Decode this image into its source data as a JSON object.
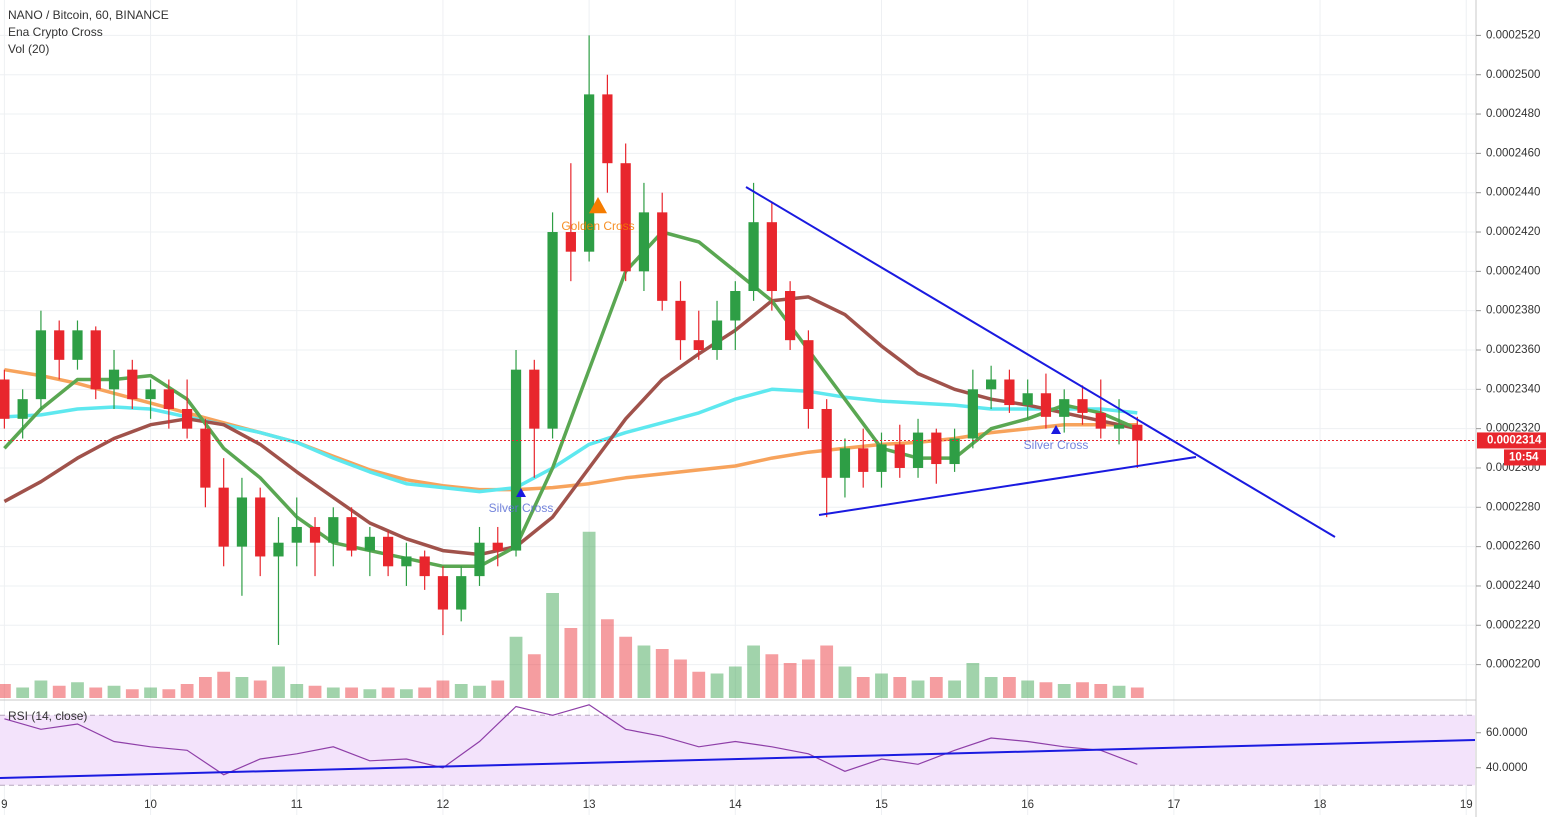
{
  "chart_data": [
    {
      "type": "candlestick",
      "title": "NANO / Bitcoin, 60, BINANCE",
      "indicators": [
        "Ena Crypto Cross",
        "Vol (20)"
      ],
      "x": [
        9.0,
        9.125,
        9.25,
        9.375,
        9.5,
        9.625,
        9.75,
        9.875,
        10.0,
        10.125,
        10.25,
        10.375,
        10.5,
        10.625,
        10.75,
        10.875,
        11.0,
        11.125,
        11.25,
        11.375,
        11.5,
        11.625,
        11.75,
        11.875,
        12.0,
        12.125,
        12.25,
        12.375,
        12.5,
        12.625,
        12.75,
        12.875,
        13.0,
        13.125,
        13.25,
        13.375,
        13.5,
        13.625,
        13.75,
        13.875,
        14.0,
        14.125,
        14.25,
        14.375,
        14.5,
        14.625,
        14.75,
        14.875,
        15.0,
        15.125,
        15.25,
        15.375,
        15.5,
        15.625,
        15.75,
        15.875,
        16.0,
        16.125,
        16.25,
        16.375,
        16.5,
        16.625,
        16.75
      ],
      "open": [
        0.0002345,
        0.0002325,
        0.0002335,
        0.000237,
        0.0002355,
        0.000237,
        0.000234,
        0.000235,
        0.0002335,
        0.000234,
        0.000233,
        0.000232,
        0.000229,
        0.000226,
        0.0002285,
        0.0002255,
        0.0002262,
        0.000227,
        0.0002262,
        0.0002275,
        0.0002258,
        0.0002265,
        0.000225,
        0.0002255,
        0.0002245,
        0.0002228,
        0.0002245,
        0.0002262,
        0.0002258,
        0.000235,
        0.000232,
        0.000242,
        0.000241,
        0.000249,
        0.0002455,
        0.00024,
        0.000243,
        0.0002385,
        0.0002365,
        0.000236,
        0.0002375,
        0.000239,
        0.0002425,
        0.000239,
        0.0002365,
        0.000233,
        0.0002295,
        0.000231,
        0.0002298,
        0.0002312,
        0.00023,
        0.0002318,
        0.0002302,
        0.0002315,
        0.000234,
        0.0002345,
        0.0002332,
        0.0002338,
        0.0002326,
        0.0002335,
        0.0002328,
        0.000232,
        0.0002322
      ],
      "high": [
        0.000235,
        0.000234,
        0.000238,
        0.0002375,
        0.0002375,
        0.0002372,
        0.000236,
        0.0002355,
        0.0002345,
        0.0002345,
        0.0002345,
        0.0002325,
        0.0002305,
        0.0002295,
        0.000229,
        0.0002275,
        0.0002285,
        0.0002275,
        0.000228,
        0.000228,
        0.000227,
        0.0002268,
        0.0002262,
        0.0002258,
        0.000225,
        0.000225,
        0.000227,
        0.000227,
        0.000236,
        0.0002355,
        0.000243,
        0.0002455,
        0.000252,
        0.00025,
        0.0002465,
        0.0002445,
        0.000244,
        0.0002395,
        0.000238,
        0.0002385,
        0.0002395,
        0.0002445,
        0.0002435,
        0.0002395,
        0.000237,
        0.0002335,
        0.0002315,
        0.000232,
        0.0002318,
        0.0002322,
        0.0002325,
        0.000232,
        0.000232,
        0.000235,
        0.0002352,
        0.000235,
        0.0002345,
        0.0002348,
        0.000234,
        0.0002342,
        0.0002345,
        0.0002335,
        0.0002326
      ],
      "low": [
        0.000232,
        0.0002315,
        0.000233,
        0.0002345,
        0.000235,
        0.0002335,
        0.000233,
        0.000233,
        0.0002325,
        0.000232,
        0.0002315,
        0.000228,
        0.000225,
        0.0002235,
        0.0002245,
        0.000221,
        0.000225,
        0.0002245,
        0.000225,
        0.0002255,
        0.0002245,
        0.0002245,
        0.000224,
        0.0002238,
        0.0002215,
        0.0002222,
        0.000224,
        0.000225,
        0.0002255,
        0.0002295,
        0.0002315,
        0.0002395,
        0.0002405,
        0.000244,
        0.0002395,
        0.000239,
        0.000238,
        0.0002355,
        0.0002355,
        0.0002355,
        0.000236,
        0.0002385,
        0.000238,
        0.000236,
        0.000232,
        0.0002275,
        0.0002285,
        0.000229,
        0.000229,
        0.0002295,
        0.0002295,
        0.0002292,
        0.0002298,
        0.000231,
        0.000233,
        0.0002328,
        0.0002325,
        0.000232,
        0.0002318,
        0.0002322,
        0.0002315,
        0.0002312,
        0.00023
      ],
      "close": [
        0.0002325,
        0.0002335,
        0.000237,
        0.0002355,
        0.000237,
        0.000234,
        0.000235,
        0.0002335,
        0.000234,
        0.000233,
        0.000232,
        0.000229,
        0.000226,
        0.0002285,
        0.0002255,
        0.0002262,
        0.000227,
        0.0002262,
        0.0002275,
        0.0002258,
        0.0002265,
        0.000225,
        0.0002255,
        0.0002245,
        0.0002228,
        0.0002245,
        0.0002262,
        0.0002258,
        0.000235,
        0.000232,
        0.000242,
        0.000241,
        0.000249,
        0.0002455,
        0.00024,
        0.000243,
        0.0002385,
        0.0002365,
        0.000236,
        0.0002375,
        0.000239,
        0.0002425,
        0.000239,
        0.0002365,
        0.000233,
        0.0002295,
        0.000231,
        0.0002298,
        0.0002312,
        0.00023,
        0.0002318,
        0.0002302,
        0.0002315,
        0.000234,
        0.0002345,
        0.0002332,
        0.0002338,
        0.0002326,
        0.0002335,
        0.0002328,
        0.000232,
        0.0002322,
        0.0002314
      ],
      "up_color": "#2e9e45",
      "down_color": "#e8262d",
      "volume": [
        8,
        6,
        10,
        7,
        9,
        6,
        7,
        5,
        6,
        5,
        8,
        12,
        15,
        12,
        10,
        18,
        8,
        7,
        6,
        6,
        5,
        6,
        5,
        6,
        10,
        8,
        7,
        10,
        35,
        25,
        60,
        40,
        95,
        45,
        35,
        30,
        28,
        22,
        15,
        14,
        18,
        30,
        25,
        20,
        22,
        30,
        18,
        12,
        14,
        12,
        10,
        12,
        10,
        20,
        12,
        12,
        10,
        9,
        8,
        9,
        8,
        7,
        6
      ],
      "lines": {
        "x": [
          9.0,
          9.25,
          9.5,
          9.75,
          10.0,
          10.25,
          10.5,
          10.75,
          11.0,
          11.25,
          11.5,
          11.75,
          12.0,
          12.25,
          12.5,
          12.75,
          13.0,
          13.25,
          13.5,
          13.75,
          14.0,
          14.25,
          14.5,
          14.75,
          15.0,
          15.25,
          15.5,
          15.75,
          16.0,
          16.25,
          16.5,
          16.75
        ],
        "series": [
          {
            "color": "#f7a35c",
            "values": [
              0.000235,
              0.0002347,
              0.0002343,
              0.0002338,
              0.0002333,
              0.0002328,
              0.0002323,
              0.0002318,
              0.0002313,
              0.0002306,
              0.0002299,
              0.0002294,
              0.0002291,
              0.0002289,
              0.0002289,
              0.000229,
              0.0002292,
              0.0002295,
              0.0002297,
              0.0002299,
              0.0002301,
              0.0002305,
              0.0002308,
              0.000231,
              0.0002312,
              0.0002313,
              0.0002315,
              0.0002318,
              0.000232,
              0.0002322,
              0.0002322,
              0.0002322
            ]
          },
          {
            "color": "#5ee8ef",
            "values": [
              0.0002326,
              0.0002327,
              0.000233,
              0.0002331,
              0.000233,
              0.0002326,
              0.0002322,
              0.0002318,
              0.0002313,
              0.0002305,
              0.0002298,
              0.0002292,
              0.000229,
              0.0002288,
              0.000229,
              0.00023,
              0.0002312,
              0.0002318,
              0.0002323,
              0.0002328,
              0.0002335,
              0.000234,
              0.0002339,
              0.0002336,
              0.0002334,
              0.0002333,
              0.0002332,
              0.000233,
              0.000233,
              0.000233,
              0.000233,
              0.0002328
            ]
          },
          {
            "color": "#a0524b",
            "values": [
              0.0002283,
              0.0002293,
              0.0002305,
              0.0002315,
              0.0002322,
              0.0002325,
              0.0002322,
              0.0002312,
              0.0002298,
              0.0002285,
              0.0002272,
              0.0002264,
              0.0002258,
              0.0002256,
              0.000226,
              0.0002275,
              0.00023,
              0.0002325,
              0.0002345,
              0.0002358,
              0.000237,
              0.0002385,
              0.0002387,
              0.0002378,
              0.0002362,
              0.0002348,
              0.000234,
              0.0002335,
              0.0002332,
              0.0002328,
              0.0002324,
              0.000232
            ]
          },
          {
            "color": "#5aa752",
            "values": [
              0.000231,
              0.000233,
              0.0002345,
              0.0002345,
              0.0002347,
              0.0002335,
              0.000231,
              0.0002295,
              0.0002275,
              0.0002262,
              0.0002258,
              0.0002254,
              0.000225,
              0.000225,
              0.000226,
              0.00023,
              0.000235,
              0.00024,
              0.000242,
              0.0002415,
              0.00024,
              0.0002385,
              0.000236,
              0.0002335,
              0.000231,
              0.0002305,
              0.0002305,
              0.000232,
              0.0002325,
              0.0002332,
              0.0002328,
              0.000232
            ]
          }
        ]
      },
      "annotations": [
        "Golden Cross",
        "Silver Cross",
        "Silver Cross"
      ],
      "last_price": {
        "value": 0.0002314,
        "label": "0.0002314"
      },
      "countdown": "10:54",
      "xlim": [
        8.97,
        19.06
      ],
      "xticks": [
        9,
        10,
        11,
        12,
        13,
        14,
        15,
        16,
        17,
        18,
        19
      ],
      "ylim": [
        0.0002182,
        0.0002538
      ],
      "yticks": [
        {
          "value": 0.00022,
          "label": "0.0002200"
        },
        {
          "value": 0.000222,
          "label": "0.0002220"
        },
        {
          "value": 0.000224,
          "label": "0.0002240"
        },
        {
          "value": 0.000226,
          "label": "0.0002260"
        },
        {
          "value": 0.000228,
          "label": "0.0002280"
        },
        {
          "value": 0.00023,
          "label": "0.0002300"
        },
        {
          "value": 0.000232,
          "label": "0.0002320"
        },
        {
          "value": 0.000234,
          "label": "0.0002340"
        },
        {
          "value": 0.000236,
          "label": "0.0002360"
        },
        {
          "value": 0.000238,
          "label": "0.0002380"
        },
        {
          "value": 0.00024,
          "label": "0.0002400"
        },
        {
          "value": 0.000242,
          "label": "0.0002420"
        },
        {
          "value": 0.000244,
          "label": "0.0002440"
        },
        {
          "value": 0.000246,
          "label": "0.0002460"
        },
        {
          "value": 0.000248,
          "label": "0.0002480"
        },
        {
          "value": 0.00025,
          "label": "0.0002500"
        },
        {
          "value": 0.000252,
          "label": "0.0002520"
        }
      ],
      "grid": true
    },
    {
      "type": "line",
      "title": "RSI (14, close)",
      "x": [
        9.0,
        9.25,
        9.5,
        9.75,
        10.0,
        10.25,
        10.5,
        10.75,
        11.0,
        11.25,
        11.5,
        11.75,
        12.0,
        12.25,
        12.5,
        12.75,
        13.0,
        13.25,
        13.5,
        13.75,
        14.0,
        14.25,
        14.5,
        14.75,
        15.0,
        15.25,
        15.5,
        15.75,
        16.0,
        16.25,
        16.5,
        16.75
      ],
      "values": [
        68,
        62,
        65,
        55,
        52,
        50,
        36,
        45,
        48,
        52,
        44,
        45,
        40,
        55,
        75,
        70,
        76,
        62,
        58,
        52,
        55,
        52,
        48,
        38,
        45,
        42,
        50,
        57,
        55,
        52,
        50,
        42
      ],
      "color": "#8e3fa8",
      "bands": [
        30,
        70
      ],
      "xlim": [
        8.97,
        19.06
      ],
      "ylim": [
        13,
        77
      ],
      "yticks": [
        {
          "value": 60,
          "label": "60.0000"
        },
        {
          "value": 40,
          "label": "40.0000"
        }
      ]
    }
  ]
}
